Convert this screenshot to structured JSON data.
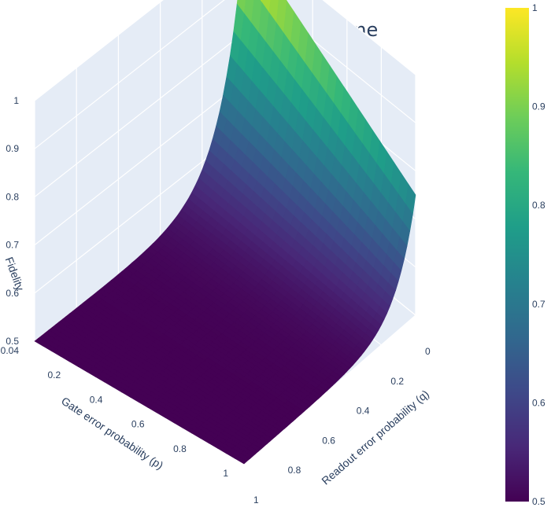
{
  "chart_data": {
    "type": "surface",
    "title": "Cluster State Scheme",
    "x_axis": {
      "label": "Readout error probability (q)",
      "range": [
        0,
        1
      ],
      "tick_labels": [
        "0",
        "0.2",
        "0.4",
        "0.6",
        "0.8",
        "1"
      ]
    },
    "y_axis": {
      "label": "Gate error probability (p)",
      "range": [
        0,
        1
      ],
      "tick_labels": [
        "0.04",
        "0.2",
        "0.4",
        "0.6",
        "0.8",
        "1"
      ]
    },
    "z_axis": {
      "label": "Fidelity",
      "range": [
        0.5,
        1
      ],
      "tick_labels": [
        "0.5",
        "0.6",
        "0.7",
        "0.8",
        "0.9",
        "1"
      ]
    },
    "surface_corner_values": {
      "q0_p0": 1.0,
      "q0_p1": 0.75,
      "q1_p0": 0.5,
      "q1_p1": 0.5
    },
    "colorscale": "Viridis",
    "colorbar": {
      "range": [
        0.5,
        1
      ],
      "tick_labels": [
        "0.5",
        "0.6",
        "0.7",
        "0.8",
        "0.9",
        "1"
      ]
    }
  }
}
